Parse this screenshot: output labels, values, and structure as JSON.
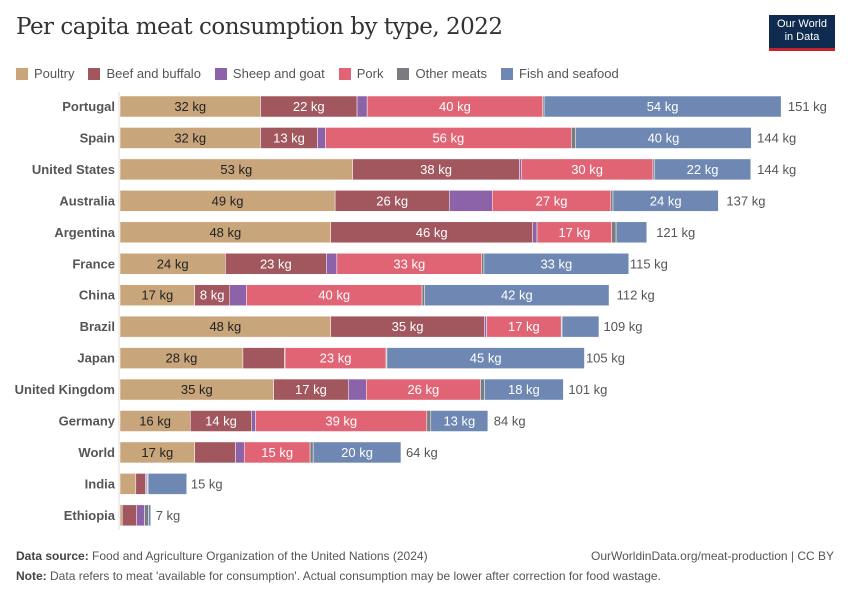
{
  "title": "Per capita meat consumption by type, 2022",
  "logo": {
    "line1": "Our World",
    "line2": "in Data"
  },
  "footer": {
    "source_label": "Data source:",
    "source_text": "Food and Agriculture Organization of the United Nations (2024)",
    "url": "OurWorldinData.org/meat-production | CC BY",
    "note_label": "Note:",
    "note_text": "Data refers to meat 'available for consumption'. Actual consumption may be lower after correction for food wastage."
  },
  "chart_data": {
    "type": "bar",
    "orientation": "horizontal",
    "stacked": true,
    "unit": "kg",
    "legend_position": "top",
    "grid": false,
    "categories": [
      "Portugal",
      "Spain",
      "United States",
      "Australia",
      "Argentina",
      "France",
      "China",
      "Brazil",
      "Japan",
      "United Kingdom",
      "Germany",
      "World",
      "India",
      "Ethiopia"
    ],
    "totals": [
      "151 kg",
      "144 kg",
      "144 kg",
      "137 kg",
      "121 kg",
      "115 kg",
      "112 kg",
      "109 kg",
      "105 kg",
      "101 kg",
      "84 kg",
      "64 kg",
      "15 kg",
      "7 kg"
    ],
    "total_values": [
      151,
      144,
      144,
      137,
      121,
      115,
      112,
      109,
      105,
      101,
      84,
      64,
      15,
      7
    ],
    "series": [
      {
        "name": "Poultry",
        "color": "#C9A57B",
        "text_color": "#222",
        "values": [
          32,
          32,
          53,
          49,
          48,
          24,
          17,
          48,
          28,
          35,
          16,
          17,
          3.6,
          0.5
        ],
        "labels": [
          "32 kg",
          "32 kg",
          "53 kg",
          "49 kg",
          "48 kg",
          "24 kg",
          "17 kg",
          "48 kg",
          "28 kg",
          "35 kg",
          "16 kg",
          "17 kg",
          "",
          ""
        ]
      },
      {
        "name": "Beef and buffalo",
        "color": "#A2575F",
        "text_color": "#fff",
        "values": [
          22,
          13,
          38,
          26,
          46,
          23,
          8,
          35,
          9.5,
          17,
          14,
          9.3,
          2.2,
          3.3
        ],
        "labels": [
          "22 kg",
          "13 kg",
          "38 kg",
          "26 kg",
          "46 kg",
          "23 kg",
          "8 kg",
          "35 kg",
          "",
          "17 kg",
          "14 kg",
          "",
          "",
          ""
        ]
      },
      {
        "name": "Sheep and goat",
        "color": "#8C63A8",
        "text_color": "#fff",
        "values": [
          2.3,
          1.8,
          0.4,
          9.8,
          1,
          2.4,
          3.8,
          0.5,
          0.1,
          4.1,
          0.9,
          2,
          0.3,
          1.8
        ],
        "labels": [
          "",
          "",
          "",
          "",
          "",
          "",
          "",
          "",
          "",
          "",
          "",
          "",
          "",
          ""
        ]
      },
      {
        "name": "Pork",
        "color": "#E06474",
        "text_color": "#fff",
        "values": [
          40,
          56,
          30,
          27,
          17,
          33,
          40,
          17,
          23,
          26,
          39,
          15,
          0.1,
          0
        ],
        "labels": [
          "40 kg",
          "56 kg",
          "30 kg",
          "27 kg",
          "17 kg",
          "33 kg",
          "40 kg",
          "17 kg",
          "23 kg",
          "26 kg",
          "39 kg",
          "15 kg",
          "",
          ""
        ]
      },
      {
        "name": "Other meats",
        "color": "#7A7C80",
        "text_color": "#fff",
        "values": [
          0.3,
          1,
          0.3,
          0.5,
          1,
          0.5,
          0.6,
          0.2,
          0.2,
          0.9,
          0.9,
          0.7,
          0.2,
          0.9
        ],
        "labels": [
          "",
          "",
          "",
          "",
          "",
          "",
          "",
          "",
          "",
          "",
          "",
          "",
          "",
          ""
        ]
      },
      {
        "name": "Fish and seafood",
        "color": "#6E88B3",
        "text_color": "#fff",
        "values": [
          54,
          40,
          22,
          24,
          7,
          33,
          42,
          8.4,
          45,
          18,
          13,
          20,
          8.8,
          0.5
        ],
        "labels": [
          "54 kg",
          "40 kg",
          "22 kg",
          "24 kg",
          "",
          "33 kg",
          "42 kg",
          "",
          "45 kg",
          "18 kg",
          "13 kg",
          "20 kg",
          "",
          ""
        ]
      }
    ]
  }
}
